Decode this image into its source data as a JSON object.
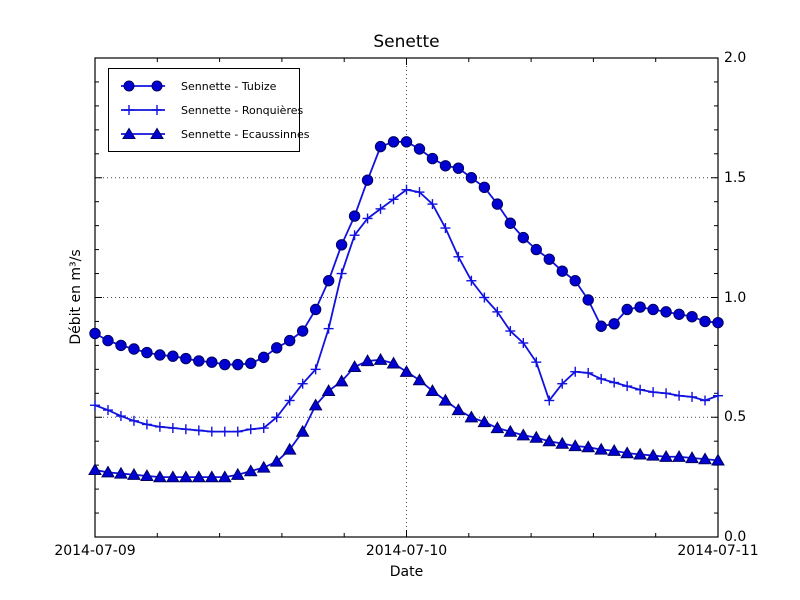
{
  "chart_data": {
    "type": "line",
    "title": "Senette",
    "xlabel": "Date",
    "ylabel": "Débit en m³/s",
    "x_tick_labels": [
      "2014-07-09",
      "2014-07-10",
      "2014-07-11"
    ],
    "x_tick_positions_days": [
      0,
      1,
      2
    ],
    "y_tick_labels": [
      "0.0",
      "0.5",
      "1.0",
      "1.5",
      "2.0"
    ],
    "y_tick_values": [
      0.0,
      0.5,
      1.0,
      1.5,
      2.0
    ],
    "ylim": [
      0.0,
      2.0
    ],
    "xlim_days": [
      0,
      2
    ],
    "grid": "dotted, at major ticks",
    "legend_position": "upper-left",
    "sampling": "hourly values from 2014-07-09 00:00 to 2014-07-11 00:00",
    "colors": {
      "line": "#1212DF",
      "marker_fill": "#0000D2",
      "marker_edge": "#000060",
      "grid": "#4a4a4a",
      "axis": "#000000",
      "background": "#ffffff"
    },
    "series": [
      {
        "name": "Sennette - Tubize",
        "marker": "circle",
        "values": [
          0.85,
          0.82,
          0.8,
          0.785,
          0.77,
          0.76,
          0.755,
          0.745,
          0.735,
          0.73,
          0.72,
          0.72,
          0.725,
          0.75,
          0.79,
          0.82,
          0.86,
          0.95,
          1.07,
          1.22,
          1.34,
          1.49,
          1.63,
          1.65,
          1.65,
          1.62,
          1.58,
          1.55,
          1.54,
          1.5,
          1.46,
          1.39,
          1.31,
          1.25,
          1.2,
          1.16,
          1.11,
          1.07,
          0.99,
          0.88,
          0.89,
          0.95,
          0.96,
          0.95,
          0.94,
          0.93,
          0.92,
          0.9,
          0.895
        ]
      },
      {
        "name": "Sennette - Ronquières",
        "marker": "plus",
        "values": [
          0.55,
          0.53,
          0.505,
          0.485,
          0.47,
          0.46,
          0.455,
          0.45,
          0.445,
          0.44,
          0.44,
          0.44,
          0.45,
          0.455,
          0.5,
          0.57,
          0.64,
          0.7,
          0.87,
          1.1,
          1.26,
          1.33,
          1.37,
          1.41,
          1.45,
          1.44,
          1.39,
          1.29,
          1.17,
          1.07,
          1.0,
          0.94,
          0.86,
          0.81,
          0.73,
          0.57,
          0.64,
          0.69,
          0.685,
          0.66,
          0.645,
          0.63,
          0.615,
          0.605,
          0.6,
          0.59,
          0.585,
          0.57,
          0.59
        ]
      },
      {
        "name": "Sennette - Ecaussinnes",
        "marker": "triangle",
        "values": [
          0.28,
          0.27,
          0.265,
          0.26,
          0.255,
          0.25,
          0.25,
          0.25,
          0.25,
          0.25,
          0.25,
          0.26,
          0.275,
          0.29,
          0.315,
          0.365,
          0.44,
          0.55,
          0.61,
          0.65,
          0.71,
          0.735,
          0.74,
          0.725,
          0.69,
          0.655,
          0.61,
          0.57,
          0.53,
          0.5,
          0.48,
          0.455,
          0.44,
          0.425,
          0.415,
          0.4,
          0.39,
          0.38,
          0.375,
          0.365,
          0.36,
          0.35,
          0.345,
          0.34,
          0.335,
          0.335,
          0.33,
          0.325,
          0.32
        ]
      }
    ]
  }
}
